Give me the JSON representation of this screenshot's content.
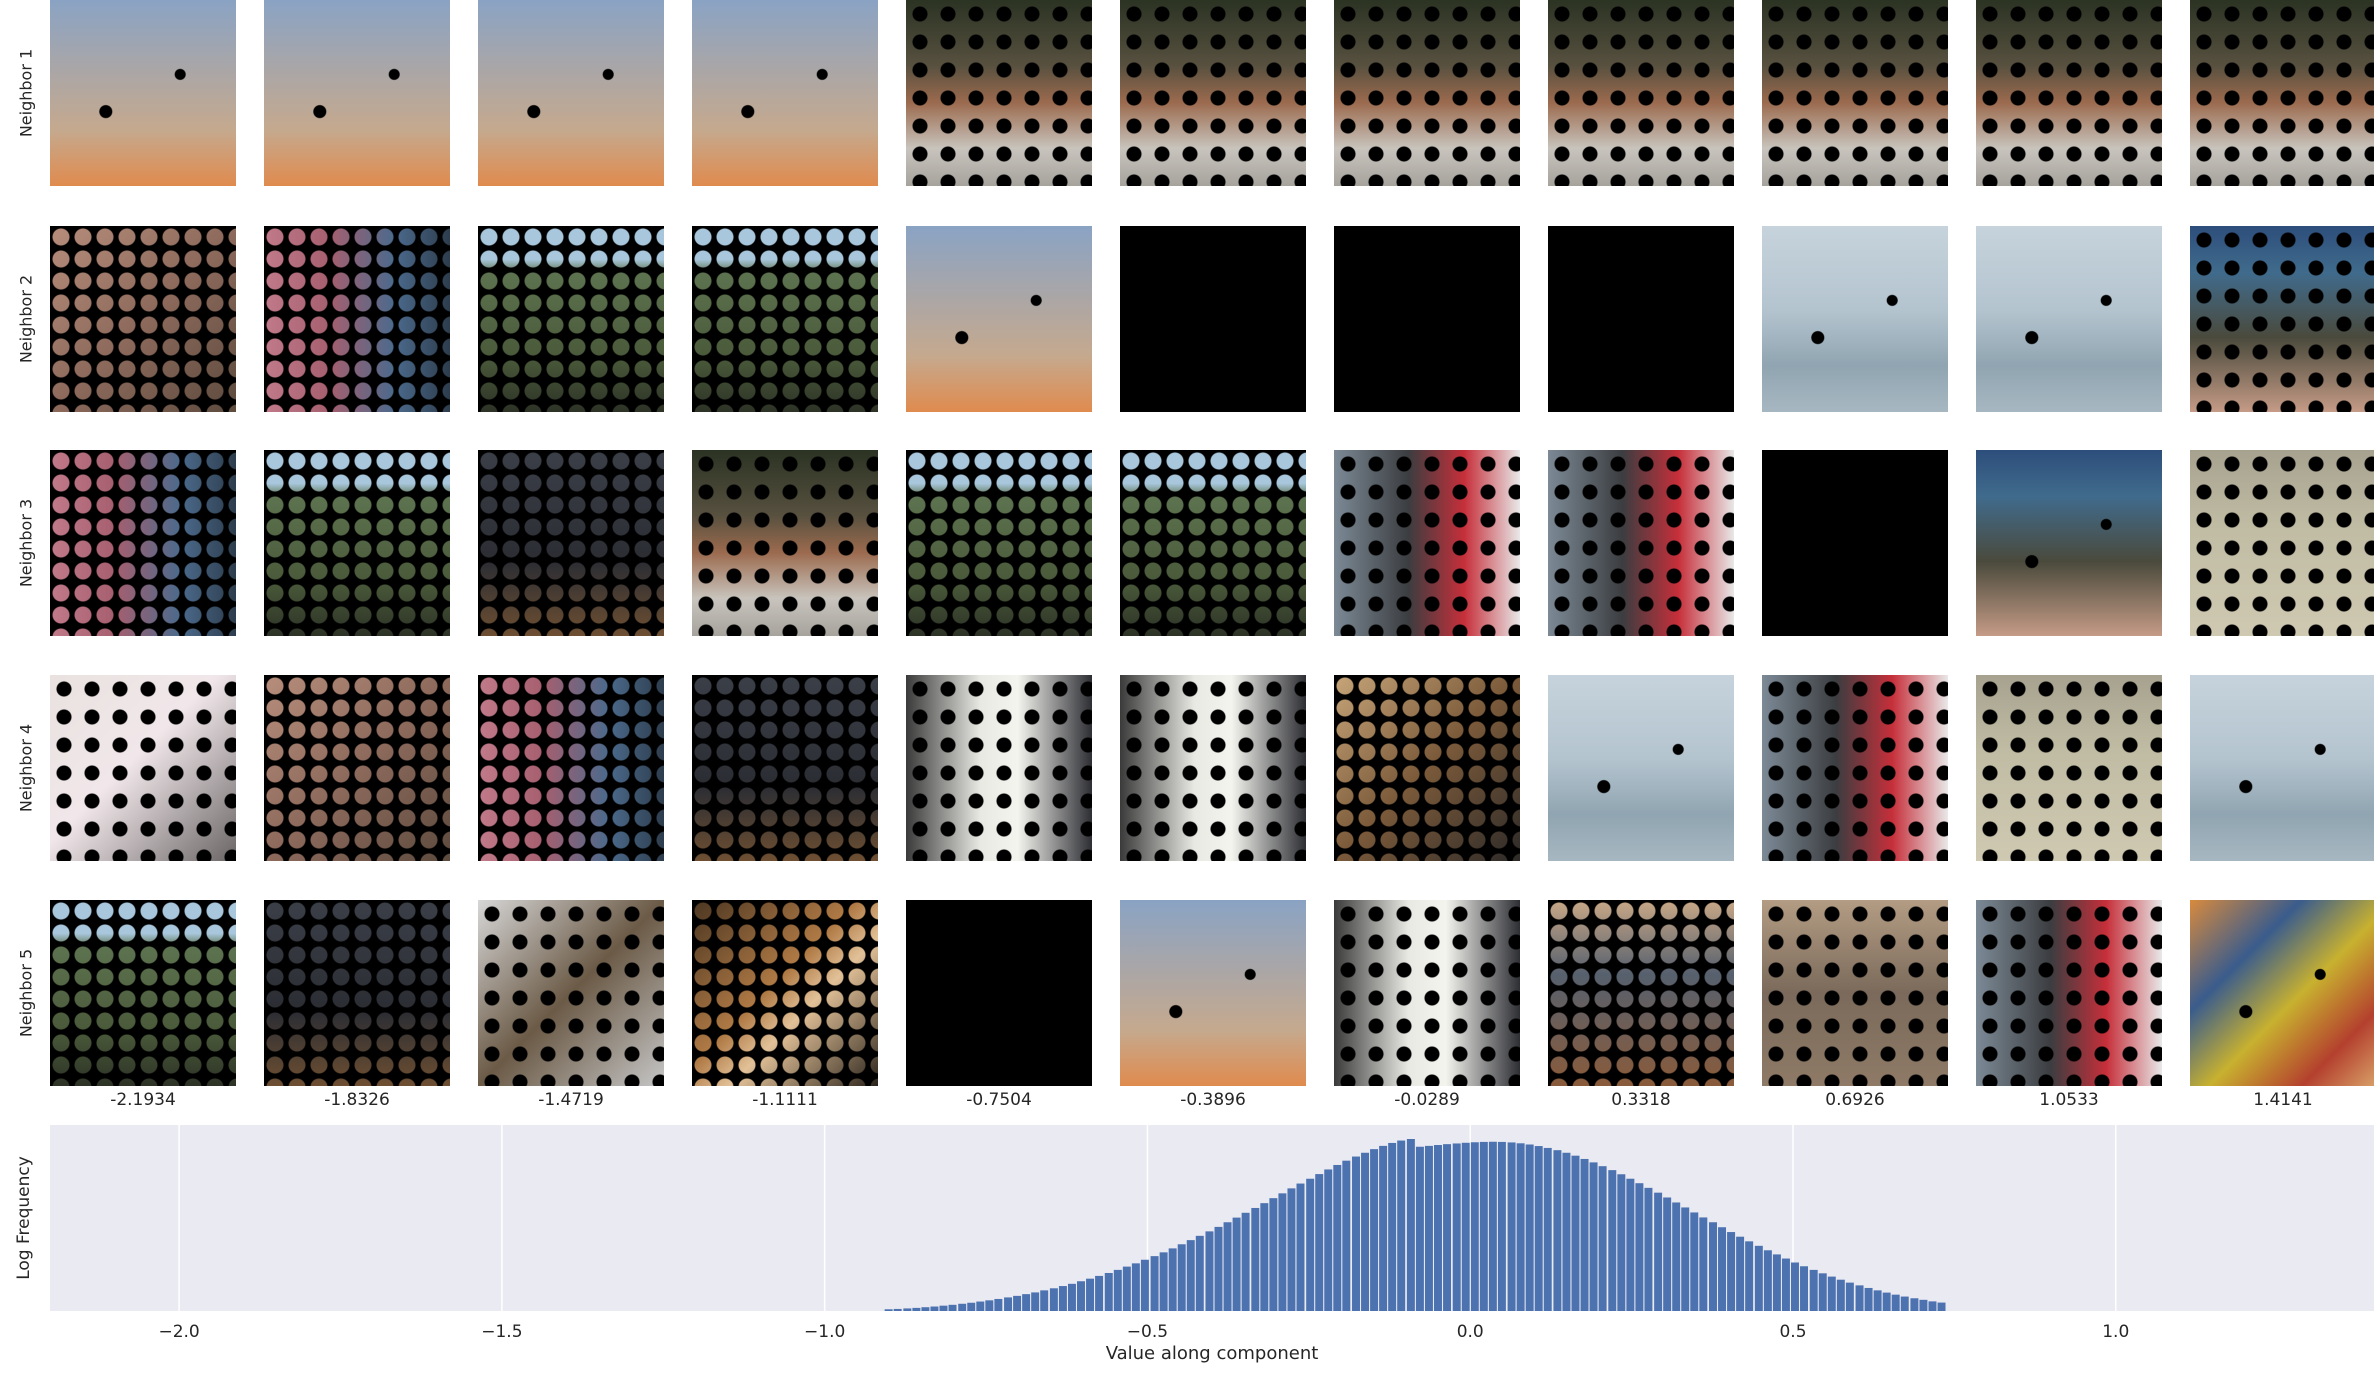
{
  "row_labels": [
    "Neighbor 1",
    "Neighbor 2",
    "Neighbor 3",
    "Neighbor 4",
    "Neighbor 5"
  ],
  "column_values": [
    "-2.1934",
    "-1.8326",
    "-1.4719",
    "-1.1111",
    "-0.7504",
    "-0.3896",
    "-0.0289",
    "0.3318",
    "0.6926",
    "1.0533",
    "1.4141"
  ],
  "thumbnails": [
    [
      {
        "scene": "fur-sky",
        "mask": "light"
      },
      {
        "scene": "fur-sky",
        "mask": "light"
      },
      {
        "scene": "fur-sky",
        "mask": "light"
      },
      {
        "scene": "fur-sky",
        "mask": "light"
      },
      {
        "scene": "dog-log",
        "mask": "medium"
      },
      {
        "scene": "dog-log",
        "mask": "medium"
      },
      {
        "scene": "dog-log",
        "mask": "medium"
      },
      {
        "scene": "dog-log",
        "mask": "medium"
      },
      {
        "scene": "dog-log",
        "mask": "medium"
      },
      {
        "scene": "dog-log",
        "mask": "medium"
      },
      {
        "scene": "dog-log",
        "mask": "medium"
      }
    ],
    [
      {
        "scene": "pink-brown",
        "mask": "heavy"
      },
      {
        "scene": "pink-blue",
        "mask": "heavy"
      },
      {
        "scene": "green-hedge",
        "mask": "heavy"
      },
      {
        "scene": "green-hedge",
        "mask": "heavy"
      },
      {
        "scene": "fur-sky",
        "mask": "light"
      },
      {
        "scene": "black",
        "mask": "none"
      },
      {
        "scene": "black",
        "mask": "none"
      },
      {
        "scene": "black",
        "mask": "none"
      },
      {
        "scene": "ducks-water",
        "mask": "light"
      },
      {
        "scene": "ducks-water",
        "mask": "light"
      },
      {
        "scene": "bird-hand",
        "mask": "medium"
      }
    ],
    [
      {
        "scene": "pink-blue",
        "mask": "heavy"
      },
      {
        "scene": "green-hedge",
        "mask": "heavy"
      },
      {
        "scene": "dark-room",
        "mask": "heavy"
      },
      {
        "scene": "dog-log",
        "mask": "medium"
      },
      {
        "scene": "green-hedge",
        "mask": "heavy"
      },
      {
        "scene": "green-hedge",
        "mask": "heavy"
      },
      {
        "scene": "people-red",
        "mask": "medium"
      },
      {
        "scene": "people-red",
        "mask": "medium"
      },
      {
        "scene": "black",
        "mask": "none"
      },
      {
        "scene": "bird-hand",
        "mask": "light"
      },
      {
        "scene": "bird-water",
        "mask": "medium"
      }
    ],
    [
      {
        "scene": "white-face",
        "mask": "medium"
      },
      {
        "scene": "pink-brown",
        "mask": "heavy"
      },
      {
        "scene": "pink-blue",
        "mask": "heavy"
      },
      {
        "scene": "dark-room",
        "mask": "heavy"
      },
      {
        "scene": "poodles",
        "mask": "medium"
      },
      {
        "scene": "poodles",
        "mask": "medium"
      },
      {
        "scene": "orange-room",
        "mask": "heavy"
      },
      {
        "scene": "ducks-water",
        "mask": "light"
      },
      {
        "scene": "people-red",
        "mask": "medium"
      },
      {
        "scene": "bird-water",
        "mask": "medium"
      },
      {
        "scene": "ducks-water",
        "mask": "light"
      }
    ],
    [
      {
        "scene": "green-hedge",
        "mask": "heavy"
      },
      {
        "scene": "dark-room",
        "mask": "heavy"
      },
      {
        "scene": "grey-cat",
        "mask": "medium"
      },
      {
        "scene": "orange-cat",
        "mask": "heavy"
      },
      {
        "scene": "black",
        "mask": "none"
      },
      {
        "scene": "fur-sky",
        "mask": "light"
      },
      {
        "scene": "poodles",
        "mask": "medium"
      },
      {
        "scene": "desk-dark",
        "mask": "heavy"
      },
      {
        "scene": "bird-nest",
        "mask": "medium"
      },
      {
        "scene": "people-red",
        "mask": "medium"
      },
      {
        "scene": "bottle-caps",
        "mask": "light"
      }
    ]
  ],
  "chart_data": {
    "type": "bar",
    "xlabel": "Value along component",
    "ylabel": "Log Frequency",
    "xlim": [
      -2.2,
      1.4
    ],
    "xticks": [
      -2.0,
      -1.5,
      -1.0,
      -0.5,
      0.0,
      0.5,
      1.0
    ],
    "xtick_labels": [
      "−2.0",
      "−1.5",
      "−1.0",
      "−0.5",
      "0.0",
      "0.5",
      "1.0"
    ],
    "grid": true,
    "bin_width": 0.0142,
    "bin_centers": [
      -0.9,
      -0.886,
      -0.871,
      -0.857,
      -0.843,
      -0.829,
      -0.815,
      -0.801,
      -0.786,
      -0.772,
      -0.758,
      -0.744,
      -0.73,
      -0.715,
      -0.701,
      -0.687,
      -0.673,
      -0.659,
      -0.644,
      -0.63,
      -0.616,
      -0.602,
      -0.588,
      -0.574,
      -0.559,
      -0.545,
      -0.531,
      -0.517,
      -0.503,
      -0.488,
      -0.474,
      -0.46,
      -0.446,
      -0.432,
      -0.418,
      -0.403,
      -0.389,
      -0.375,
      -0.361,
      -0.347,
      -0.332,
      -0.318,
      -0.304,
      -0.29,
      -0.276,
      -0.262,
      -0.247,
      -0.233,
      -0.219,
      -0.205,
      -0.191,
      -0.176,
      -0.162,
      -0.148,
      -0.134,
      -0.12,
      -0.106,
      -0.091,
      -0.077,
      -0.063,
      -0.049,
      -0.035,
      -0.02,
      -0.006,
      0.008,
      0.022,
      0.036,
      0.05,
      0.065,
      0.079,
      0.093,
      0.107,
      0.121,
      0.136,
      0.15,
      0.164,
      0.178,
      0.192,
      0.206,
      0.221,
      0.235,
      0.249,
      0.263,
      0.277,
      0.292,
      0.306,
      0.32,
      0.334,
      0.348,
      0.362,
      0.377,
      0.391,
      0.405,
      0.419,
      0.433,
      0.448,
      0.462,
      0.476,
      0.49,
      0.504,
      0.518,
      0.533,
      0.547,
      0.561,
      0.575,
      0.589,
      0.604,
      0.618,
      0.632,
      0.646,
      0.66,
      0.674,
      0.689,
      0.703,
      0.717,
      0.731
    ],
    "values": [
      0.01,
      0.012,
      0.015,
      0.018,
      0.022,
      0.026,
      0.031,
      0.036,
      0.042,
      0.048,
      0.055,
      0.062,
      0.07,
      0.079,
      0.088,
      0.098,
      0.108,
      0.12,
      0.132,
      0.145,
      0.158,
      0.173,
      0.188,
      0.204,
      0.221,
      0.239,
      0.258,
      0.277,
      0.298,
      0.319,
      0.341,
      0.364,
      0.388,
      0.412,
      0.437,
      0.463,
      0.489,
      0.516,
      0.543,
      0.571,
      0.599,
      0.627,
      0.656,
      0.684,
      0.713,
      0.741,
      0.769,
      0.796,
      0.823,
      0.849,
      0.874,
      0.898,
      0.92,
      0.941,
      0.96,
      0.977,
      0.991,
      1.0,
      0.955,
      0.96,
      0.965,
      0.97,
      0.974,
      0.978,
      0.981,
      0.983,
      0.984,
      0.983,
      0.98,
      0.975,
      0.968,
      0.959,
      0.948,
      0.935,
      0.92,
      0.903,
      0.884,
      0.864,
      0.842,
      0.819,
      0.795,
      0.769,
      0.743,
      0.716,
      0.688,
      0.66,
      0.631,
      0.602,
      0.573,
      0.544,
      0.516,
      0.487,
      0.459,
      0.432,
      0.405,
      0.379,
      0.353,
      0.329,
      0.305,
      0.282,
      0.26,
      0.239,
      0.219,
      0.2,
      0.182,
      0.165,
      0.149,
      0.134,
      0.12,
      0.107,
      0.095,
      0.084,
      0.074,
      0.065,
      0.056,
      0.049
    ]
  },
  "colors": {
    "bar": "#4c72b0",
    "axes_background": "#eaeaf2",
    "grid": "#ffffff",
    "text": "#262626"
  }
}
